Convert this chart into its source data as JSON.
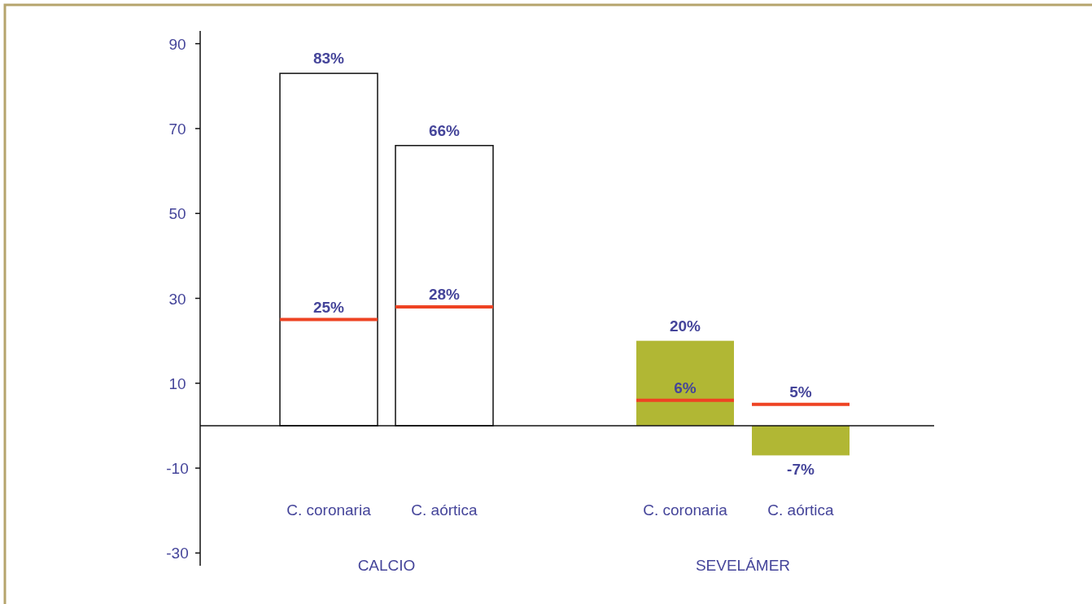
{
  "chart_data": {
    "type": "bar",
    "categories": [
      "C. coronaria",
      "C. aórtica",
      "C. coronaria",
      "C. aórtica"
    ],
    "series": [
      {
        "colors": [
          "#ffffff",
          "#ffffff",
          "#b1b734",
          "#b1b734"
        ],
        "values": [
          83,
          66,
          20,
          -7
        ],
        "value_labels": [
          "83%",
          "66%",
          "20%",
          "-7%"
        ]
      }
    ],
    "ref_lines": [
      {
        "axis": "y",
        "value": 25,
        "label": "25%",
        "color": "#ee4323"
      },
      {
        "axis": "y",
        "value": 28,
        "label": "28%",
        "color": "#ee4323"
      },
      {
        "axis": "y",
        "value": 6,
        "label": "6%",
        "color": "#ee4323"
      },
      {
        "axis": "y",
        "value": 5,
        "label": "5%",
        "color": "#ee4323"
      }
    ],
    "annotations": [
      "CALCIO",
      "SEVELÁMER"
    ],
    "ylim": [
      -33,
      93
    ],
    "yticks": [
      90,
      70,
      50,
      30,
      10,
      -10,
      -30
    ],
    "grid": false
  }
}
